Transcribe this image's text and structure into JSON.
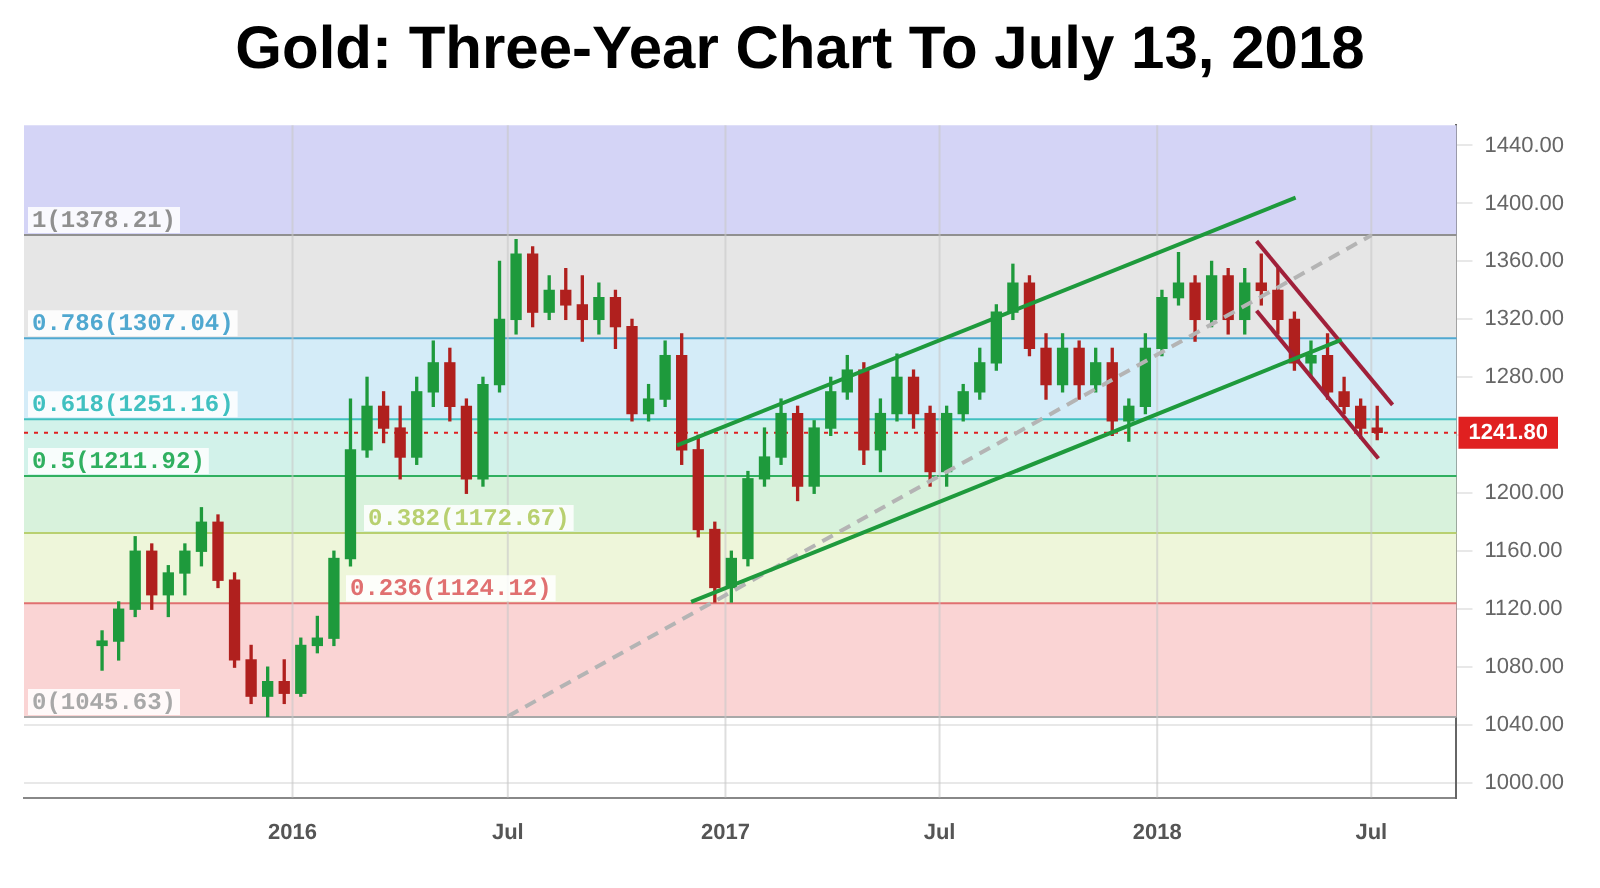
{
  "chart_data": {
    "type": "candlestick",
    "title": "Gold: Three-Year Chart To July 13, 2018",
    "x": [
      "2015-07-24",
      "2015-08-07",
      "2015-08-21",
      "2015-09-04",
      "2015-09-18",
      "2015-10-02",
      "2015-10-16",
      "2015-10-30",
      "2015-11-13",
      "2015-11-27",
      "2015-12-11",
      "2015-12-25",
      "2016-01-08",
      "2016-01-22",
      "2016-02-05",
      "2016-02-19",
      "2016-03-04",
      "2016-03-18",
      "2016-04-01",
      "2016-04-15",
      "2016-04-29",
      "2016-05-13",
      "2016-05-27",
      "2016-06-10",
      "2016-06-24",
      "2016-07-08",
      "2016-07-22",
      "2016-08-05",
      "2016-08-19",
      "2016-09-02",
      "2016-09-16",
      "2016-09-30",
      "2016-10-14",
      "2016-10-28",
      "2016-11-11",
      "2016-11-25",
      "2016-12-09",
      "2016-12-23",
      "2017-01-06",
      "2017-01-20",
      "2017-02-03",
      "2017-02-17",
      "2017-03-03",
      "2017-03-17",
      "2017-03-31",
      "2017-04-14",
      "2017-04-28",
      "2017-05-12",
      "2017-05-26",
      "2017-06-09",
      "2017-06-23",
      "2017-07-07",
      "2017-07-21",
      "2017-08-04",
      "2017-08-18",
      "2017-09-01",
      "2017-09-15",
      "2017-09-29",
      "2017-10-13",
      "2017-10-27",
      "2017-11-10",
      "2017-11-24",
      "2017-12-08",
      "2017-12-22",
      "2018-01-05",
      "2018-01-19",
      "2018-02-02",
      "2018-02-16",
      "2018-03-02",
      "2018-03-16",
      "2018-03-30",
      "2018-04-13",
      "2018-04-27",
      "2018-05-11",
      "2018-05-25",
      "2018-06-08",
      "2018-06-22",
      "2018-07-06"
    ],
    "ohlc": [
      [
        1095,
        1105,
        1078,
        1098
      ],
      [
        1098,
        1125,
        1085,
        1120
      ],
      [
        1120,
        1170,
        1115,
        1160
      ],
      [
        1160,
        1165,
        1120,
        1130
      ],
      [
        1130,
        1150,
        1115,
        1145
      ],
      [
        1145,
        1165,
        1130,
        1160
      ],
      [
        1160,
        1190,
        1150,
        1180
      ],
      [
        1180,
        1185,
        1135,
        1140
      ],
      [
        1140,
        1145,
        1080,
        1085
      ],
      [
        1085,
        1095,
        1055,
        1060
      ],
      [
        1060,
        1080,
        1046,
        1070
      ],
      [
        1070,
        1085,
        1055,
        1062
      ],
      [
        1062,
        1100,
        1060,
        1095
      ],
      [
        1095,
        1115,
        1090,
        1100
      ],
      [
        1100,
        1160,
        1095,
        1155
      ],
      [
        1155,
        1265,
        1150,
        1230
      ],
      [
        1230,
        1280,
        1225,
        1260
      ],
      [
        1260,
        1270,
        1235,
        1245
      ],
      [
        1245,
        1260,
        1210,
        1225
      ],
      [
        1225,
        1280,
        1220,
        1270
      ],
      [
        1270,
        1305,
        1260,
        1290
      ],
      [
        1290,
        1300,
        1250,
        1260
      ],
      [
        1260,
        1265,
        1200,
        1210
      ],
      [
        1210,
        1280,
        1205,
        1275
      ],
      [
        1275,
        1360,
        1270,
        1320
      ],
      [
        1320,
        1375,
        1310,
        1365
      ],
      [
        1365,
        1370,
        1315,
        1325
      ],
      [
        1325,
        1350,
        1320,
        1340
      ],
      [
        1340,
        1355,
        1320,
        1330
      ],
      [
        1330,
        1350,
        1305,
        1320
      ],
      [
        1320,
        1345,
        1310,
        1335
      ],
      [
        1335,
        1340,
        1300,
        1315
      ],
      [
        1315,
        1320,
        1250,
        1255
      ],
      [
        1255,
        1275,
        1250,
        1265
      ],
      [
        1265,
        1305,
        1260,
        1295
      ],
      [
        1295,
        1310,
        1220,
        1230
      ],
      [
        1230,
        1240,
        1170,
        1175
      ],
      [
        1175,
        1180,
        1125,
        1135
      ],
      [
        1135,
        1160,
        1125,
        1155
      ],
      [
        1155,
        1215,
        1150,
        1210
      ],
      [
        1210,
        1245,
        1205,
        1225
      ],
      [
        1225,
        1265,
        1220,
        1255
      ],
      [
        1255,
        1260,
        1195,
        1205
      ],
      [
        1205,
        1250,
        1200,
        1245
      ],
      [
        1245,
        1280,
        1240,
        1270
      ],
      [
        1270,
        1295,
        1265,
        1285
      ],
      [
        1285,
        1290,
        1220,
        1230
      ],
      [
        1230,
        1265,
        1215,
        1255
      ],
      [
        1255,
        1296,
        1250,
        1280
      ],
      [
        1280,
        1285,
        1245,
        1255
      ],
      [
        1255,
        1260,
        1205,
        1215
      ],
      [
        1215,
        1260,
        1205,
        1255
      ],
      [
        1255,
        1275,
        1250,
        1270
      ],
      [
        1270,
        1300,
        1265,
        1290
      ],
      [
        1290,
        1330,
        1285,
        1325
      ],
      [
        1325,
        1358,
        1320,
        1345
      ],
      [
        1345,
        1350,
        1295,
        1300
      ],
      [
        1300,
        1310,
        1265,
        1275
      ],
      [
        1275,
        1310,
        1270,
        1300
      ],
      [
        1300,
        1305,
        1265,
        1275
      ],
      [
        1275,
        1300,
        1270,
        1290
      ],
      [
        1290,
        1300,
        1240,
        1250
      ],
      [
        1250,
        1265,
        1236,
        1260
      ],
      [
        1260,
        1310,
        1255,
        1300
      ],
      [
        1300,
        1340,
        1295,
        1335
      ],
      [
        1335,
        1366,
        1330,
        1345
      ],
      [
        1345,
        1350,
        1305,
        1320
      ],
      [
        1320,
        1360,
        1315,
        1350
      ],
      [
        1350,
        1355,
        1310,
        1320
      ],
      [
        1320,
        1355,
        1310,
        1345
      ],
      [
        1345,
        1365,
        1330,
        1340
      ],
      [
        1340,
        1355,
        1310,
        1320
      ],
      [
        1320,
        1325,
        1285,
        1290
      ],
      [
        1290,
        1305,
        1280,
        1295
      ],
      [
        1295,
        1310,
        1265,
        1270
      ],
      [
        1270,
        1280,
        1255,
        1260
      ],
      [
        1260,
        1265,
        1238,
        1245
      ],
      [
        1245,
        1260,
        1237,
        1242
      ]
    ],
    "colors": [
      "#1e9a3c",
      "#1e9a3c",
      "#1e9a3c",
      "#b0201e",
      "#1e9a3c",
      "#1e9a3c",
      "#1e9a3c",
      "#b0201e",
      "#b0201e",
      "#b0201e",
      "#1e9a3c",
      "#b0201e",
      "#1e9a3c",
      "#1e9a3c",
      "#1e9a3c",
      "#1e9a3c",
      "#1e9a3c",
      "#b0201e",
      "#b0201e",
      "#1e9a3c",
      "#1e9a3c",
      "#b0201e",
      "#b0201e",
      "#1e9a3c",
      "#1e9a3c",
      "#1e9a3c",
      "#b0201e",
      "#1e9a3c",
      "#b0201e",
      "#b0201e",
      "#1e9a3c",
      "#b0201e",
      "#b0201e",
      "#1e9a3c",
      "#1e9a3c",
      "#b0201e",
      "#b0201e",
      "#b0201e",
      "#1e9a3c",
      "#1e9a3c",
      "#1e9a3c",
      "#1e9a3c",
      "#b0201e",
      "#1e9a3c",
      "#1e9a3c",
      "#1e9a3c",
      "#b0201e",
      "#1e9a3c",
      "#1e9a3c",
      "#b0201e",
      "#b0201e",
      "#1e9a3c",
      "#1e9a3c",
      "#1e9a3c",
      "#1e9a3c",
      "#1e9a3c",
      "#b0201e",
      "#b0201e",
      "#1e9a3c",
      "#b0201e",
      "#1e9a3c",
      "#b0201e",
      "#1e9a3c",
      "#1e9a3c",
      "#1e9a3c",
      "#1e9a3c",
      "#b0201e",
      "#1e9a3c",
      "#b0201e",
      "#1e9a3c",
      "#b0201e",
      "#b0201e",
      "#b0201e",
      "#1e9a3c",
      "#b0201e",
      "#b0201e",
      "#b0201e",
      "#b0201e"
    ],
    "series": [
      {
        "type": "line",
        "color": "#1e9a3c",
        "x": [
          "2016-11-21",
          "2018-04-28"
        ],
        "values": [
          1233,
          1404
        ]
      },
      {
        "type": "line",
        "color": "#1e9a3c",
        "x": [
          "2016-12-03",
          "2018-06-06"
        ],
        "values": [
          1125,
          1306
        ]
      },
      {
        "type": "line",
        "color": "#a0203a",
        "x": [
          "2018-03-26",
          "2018-07-19"
        ],
        "values": [
          1374,
          1261
        ]
      },
      {
        "type": "line",
        "color": "#a0203a",
        "x": [
          "2018-03-26",
          "2018-07-07"
        ],
        "values": [
          1326,
          1224
        ]
      },
      {
        "type": "line",
        "color": "#b4b4b4",
        "line_style": "dashed",
        "x": [
          "2016-07-01",
          "2018-07-01"
        ],
        "values": [
          1046,
          1378
        ]
      }
    ],
    "xlim": [
      "2015-05-19",
      "2018-09-11"
    ],
    "xticks": [
      {
        "value": "2016-01-01",
        "label": "2016"
      },
      {
        "value": "2016-07-01",
        "label": "Jul"
      },
      {
        "value": "2017-01-01",
        "label": "2017"
      },
      {
        "value": "2017-07-01",
        "label": "Jul"
      },
      {
        "value": "2018-01-01",
        "label": "2018"
      },
      {
        "value": "2018-07-01",
        "label": "Jul"
      }
    ],
    "ylim": [
      990,
      1454
    ],
    "yticks": [
      {
        "value": 1000,
        "label": "1000.00"
      },
      {
        "value": 1040,
        "label": "1040.00"
      },
      {
        "value": 1080,
        "label": "1080.00"
      },
      {
        "value": 1120,
        "label": "1120.00"
      },
      {
        "value": 1160,
        "label": "1160.00"
      },
      {
        "value": 1200,
        "label": "1200.00"
      },
      {
        "value": 1240,
        "label": null
      },
      {
        "value": 1280,
        "label": "1280.00"
      },
      {
        "value": 1320,
        "label": "1320.00"
      },
      {
        "value": 1360,
        "label": "1360.00"
      },
      {
        "value": 1400,
        "label": "1400.00"
      },
      {
        "value": 1440,
        "label": "1440.00"
      }
    ],
    "grid": true,
    "bands": [
      {
        "axis": "y",
        "from": 1045.63,
        "to": 1124.12,
        "color": "#fad4d4"
      },
      {
        "axis": "y",
        "from": 1124.12,
        "to": 1172.67,
        "color": "#eef6da"
      },
      {
        "axis": "y",
        "from": 1172.67,
        "to": 1211.92,
        "color": "#d8f2dc"
      },
      {
        "axis": "y",
        "from": 1211.92,
        "to": 1251.16,
        "color": "#d2f2ea"
      },
      {
        "axis": "y",
        "from": 1251.16,
        "to": 1307.04,
        "color": "#d4ecf8"
      },
      {
        "axis": "y",
        "from": 1307.04,
        "to": 1378.21,
        "color": "#e6e6e6"
      },
      {
        "axis": "y",
        "from": 1378.21,
        "to": 1454,
        "color": "#d4d4f6"
      }
    ],
    "ref_lines": [
      {
        "axis": "y",
        "value": 1045.63,
        "label": "0(1045.63)",
        "color": "#a8a8a8"
      },
      {
        "axis": "y",
        "value": 1124.12,
        "label": "0.236(1124.12)",
        "color": "#e07070"
      },
      {
        "axis": "y",
        "value": 1172.67,
        "label": "0.382(1172.67)",
        "color": "#b8d070"
      },
      {
        "axis": "y",
        "value": 1211.92,
        "label": "0.5(1211.92)",
        "color": "#30b060"
      },
      {
        "axis": "y",
        "value": 1251.16,
        "label": "0.618(1251.16)",
        "color": "#40c0c0"
      },
      {
        "axis": "y",
        "value": 1307.04,
        "label": "0.786(1307.04)",
        "color": "#50a8d0"
      },
      {
        "axis": "y",
        "value": 1378.21,
        "label": "1(1378.21)",
        "color": "#909090"
      },
      {
        "axis": "y",
        "value": 1241.8,
        "label": "1241.80",
        "color": "#e02020",
        "line_style": "dotted"
      }
    ]
  }
}
